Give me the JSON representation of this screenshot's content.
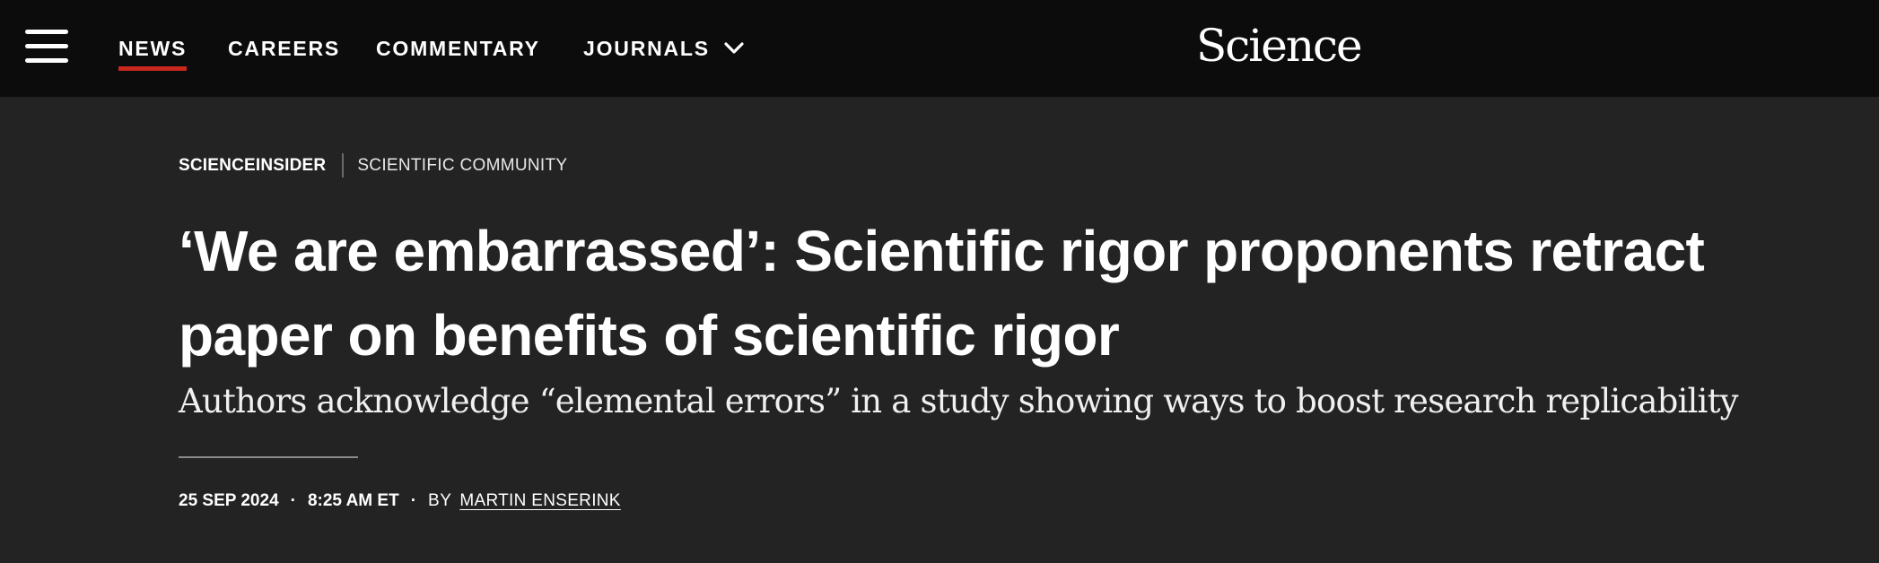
{
  "header": {
    "menu_icon": "hamburger-menu-icon",
    "nav": [
      {
        "label": "NEWS",
        "active": true
      },
      {
        "label": "CAREERS"
      },
      {
        "label": "COMMENTARY"
      },
      {
        "label": "JOURNALS",
        "icon": "chevron-down-icon"
      }
    ],
    "logo": "Science",
    "active_underline_color": "#c8281e"
  },
  "article": {
    "section": "SCIENCEINSIDER",
    "subsection": "SCIENTIFIC COMMUNITY",
    "headline": "‘We are embarrassed’: Scientific rigor proponents retract paper on benefits of scientific rigor",
    "dek": "Authors acknowledge “elemental errors” in a study showing ways to boost research replicability",
    "date": "25 SEP 2024",
    "time": "8:25 AM ET",
    "dot": "·",
    "by_label": "BY",
    "author": "MARTIN ENSERINK"
  }
}
